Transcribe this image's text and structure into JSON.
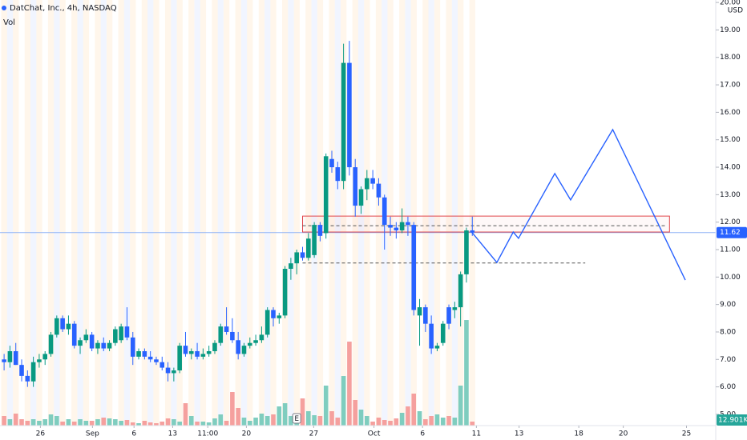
{
  "chart_data": {
    "type": "candlestick",
    "title": "DatChat, Inc., 4h, NASDAQ",
    "volume_title": "Vol",
    "currency": "USD",
    "earnings_marker": "E",
    "up_color": "#089981",
    "down_color": "#2962ff",
    "volume_up_color": "#7fcdbf",
    "volume_down_color": "#f5a09e",
    "drawing_color": "#2962ff",
    "rectangle_color": "#e0464b",
    "x": [
      0,
      1,
      2,
      3,
      4,
      5,
      6,
      7,
      8,
      9,
      10,
      11,
      12,
      13,
      14,
      15,
      16,
      17,
      18,
      19,
      20,
      21,
      22,
      23,
      24,
      25,
      26,
      27,
      28,
      29,
      30,
      31,
      32,
      33,
      34,
      35,
      36,
      37,
      38,
      39,
      40,
      41,
      42,
      43,
      44,
      45,
      46,
      47,
      48,
      49,
      50,
      51,
      52,
      53,
      54,
      55,
      56,
      57,
      58,
      59,
      60,
      61,
      62,
      63,
      64,
      65,
      66,
      67,
      68,
      69,
      70,
      71,
      72,
      73,
      74,
      75,
      76,
      77,
      78,
      79,
      80
    ],
    "open": [
      7.0,
      6.9,
      7.3,
      6.8,
      6.4,
      6.2,
      6.9,
      7.0,
      7.2,
      7.9,
      8.5,
      8.1,
      8.3,
      7.5,
      7.7,
      7.9,
      7.4,
      7.6,
      7.4,
      7.6,
      7.7,
      8.2,
      7.8,
      7.1,
      7.3,
      7.1,
      7.0,
      6.9,
      6.7,
      6.5,
      6.6,
      7.5,
      7.2,
      7.3,
      7.1,
      7.2,
      7.3,
      7.6,
      8.2,
      8.0,
      7.7,
      7.2,
      7.5,
      7.6,
      7.7,
      7.9,
      8.8,
      8.5,
      8.6,
      10.3,
      10.5,
      10.9,
      10.7,
      10.8,
      11.9,
      11.6,
      14.3,
      14.0,
      13.5,
      17.8,
      14.0,
      12.6,
      13.2,
      13.6,
      13.4,
      12.9,
      11.9,
      11.8,
      11.7,
      12.0,
      11.9,
      8.6,
      8.9,
      8.3,
      7.4,
      7.6,
      8.9,
      8.8,
      8.9,
      10.1,
      11.7
    ],
    "high": [
      7.2,
      7.5,
      7.6,
      7.0,
      6.6,
      7.1,
      7.2,
      7.3,
      8.0,
      8.6,
      8.6,
      8.6,
      8.4,
      7.8,
      8.1,
      8.0,
      7.7,
      7.8,
      7.7,
      8.2,
      8.3,
      8.9,
      8.0,
      7.4,
      7.4,
      7.3,
      7.1,
      7.1,
      6.9,
      6.7,
      7.6,
      8.0,
      7.4,
      7.6,
      7.4,
      7.5,
      7.7,
      8.3,
      8.9,
      8.5,
      8.0,
      7.6,
      7.8,
      7.9,
      8.2,
      8.9,
      8.9,
      8.7,
      10.4,
      10.7,
      11.0,
      11.1,
      11.6,
      12.0,
      12.0,
      14.5,
      14.6,
      14.2,
      18.5,
      18.6,
      14.3,
      13.3,
      13.9,
      13.9,
      13.6,
      13.0,
      12.2,
      12.0,
      12.5,
      12.2,
      12.0,
      9.2,
      9.0,
      8.6,
      7.6,
      8.4,
      9.0,
      9.1,
      10.2,
      11.8,
      12.2
    ],
    "low": [
      6.6,
      6.7,
      6.8,
      6.2,
      6.0,
      6.0,
      6.7,
      6.8,
      7.1,
      7.8,
      8.0,
      7.9,
      7.4,
      7.2,
      7.6,
      7.3,
      7.2,
      7.3,
      7.3,
      7.5,
      7.6,
      7.7,
      6.8,
      7.0,
      7.0,
      6.9,
      6.8,
      6.6,
      6.2,
      6.2,
      6.5,
      7.1,
      7.0,
      7.0,
      7.0,
      7.1,
      7.2,
      7.5,
      7.9,
      7.6,
      7.0,
      7.1,
      7.4,
      7.5,
      7.6,
      7.8,
      8.2,
      8.3,
      8.5,
      9.9,
      10.1,
      10.6,
      10.6,
      10.7,
      11.3,
      11.4,
      13.8,
      13.2,
      13.2,
      13.7,
      12.2,
      12.3,
      12.8,
      13.2,
      12.6,
      11.0,
      11.5,
      11.4,
      11.6,
      11.5,
      8.6,
      7.5,
      8.0,
      7.2,
      7.3,
      7.5,
      8.1,
      8.5,
      8.2,
      9.8,
      11.5
    ],
    "close": [
      6.9,
      7.3,
      6.8,
      6.4,
      6.2,
      6.9,
      7.0,
      7.2,
      7.9,
      8.5,
      8.1,
      8.3,
      7.5,
      7.7,
      7.9,
      7.4,
      7.6,
      7.4,
      7.6,
      8.1,
      8.2,
      7.8,
      7.1,
      7.3,
      7.1,
      7.0,
      6.9,
      6.7,
      6.5,
      6.6,
      7.5,
      7.2,
      7.3,
      7.1,
      7.2,
      7.3,
      7.6,
      8.2,
      8.0,
      7.7,
      7.2,
      7.5,
      7.6,
      7.7,
      7.9,
      8.8,
      8.5,
      8.6,
      10.3,
      10.5,
      10.9,
      10.7,
      11.4,
      11.9,
      11.5,
      14.4,
      14.0,
      13.5,
      17.8,
      14.0,
      12.6,
      13.2,
      13.6,
      13.4,
      12.9,
      11.9,
      11.8,
      11.7,
      12.0,
      11.9,
      8.8,
      8.9,
      8.3,
      7.4,
      7.5,
      8.3,
      8.3,
      8.9,
      10.1,
      11.7,
      11.62
    ],
    "volume": [
      30960,
      20640,
      38700,
      20640,
      15480,
      20640,
      15480,
      20640,
      36120,
      30960,
      12900,
      20640,
      12900,
      20640,
      15480,
      15480,
      20640,
      25800,
      23220,
      20640,
      15480,
      18060,
      10320,
      7740,
      15480,
      10320,
      7740,
      12900,
      23220,
      20640,
      12900,
      72240,
      30960,
      12900,
      12900,
      10320,
      23220,
      36120,
      15480,
      108360,
      56760,
      25800,
      15480,
      25800,
      38700,
      30960,
      36120,
      61920,
      72240,
      30960,
      25800,
      87720,
      46440,
      33540,
      30960,
      129000,
      46440,
      25800,
      159960,
      270900,
      82560,
      51600,
      30960,
      12900,
      25800,
      18060,
      15480,
      23220,
      41280,
      61920,
      103200,
      46440,
      20640,
      30960,
      36120,
      25800,
      30960,
      25800,
      129000,
      340560,
      12901
    ],
    "last_volume": {
      "value": 12901,
      "label": "12.901K"
    },
    "last_price": 11.62,
    "volume_ylim": [
      0,
      560000
    ],
    "xlim": [
      -0.7,
      121.6
    ],
    "ylim": [
      4.59,
      20.09
    ],
    "xticks": [
      {
        "value": 6.2,
        "label": "26"
      },
      {
        "value": 15.1,
        "label": "Sep"
      },
      {
        "value": 22.2,
        "label": "6"
      },
      {
        "value": 28.8,
        "label": "13"
      },
      {
        "value": 34.8,
        "label": "11:00"
      },
      {
        "value": 41.4,
        "label": "20"
      },
      {
        "value": 52.9,
        "label": "27"
      },
      {
        "value": 63.2,
        "label": "Oct"
      },
      {
        "value": 71.5,
        "label": "6"
      },
      {
        "value": 80.7,
        "label": "11"
      },
      {
        "value": 88.0,
        "label": "13"
      },
      {
        "value": 98.2,
        "label": "18"
      },
      {
        "value": 105.8,
        "label": "20"
      },
      {
        "value": 116.6,
        "label": "25"
      }
    ],
    "yticks": [
      {
        "value": 5,
        "label": "5.00"
      },
      {
        "value": 6,
        "label": "6.00"
      },
      {
        "value": 7,
        "label": "7.00"
      },
      {
        "value": 8,
        "label": "8.00"
      },
      {
        "value": 9,
        "label": "9.00"
      },
      {
        "value": 10,
        "label": "10.00"
      },
      {
        "value": 11,
        "label": "11.00"
      },
      {
        "value": 12,
        "label": "12.00"
      },
      {
        "value": 13,
        "label": "13.00"
      },
      {
        "value": 14,
        "label": "14.00"
      },
      {
        "value": 15,
        "label": "15.00"
      },
      {
        "value": 16,
        "label": "16.00"
      },
      {
        "value": 17,
        "label": "17.00"
      },
      {
        "value": 18,
        "label": "18.00"
      },
      {
        "value": 19,
        "label": "19.00"
      },
      {
        "value": 20,
        "label": "20.00"
      }
    ],
    "earnings_x": 50,
    "rectangle": {
      "x": [
        51,
        113.7
      ],
      "y": [
        11.64,
        12.22
      ]
    },
    "levels": [
      {
        "x": [
          51,
          113.3
        ],
        "y": 11.87
      },
      {
        "x": [
          51,
          99.3
        ],
        "y": 10.51
      }
    ],
    "projection": {
      "x": [
        79.9,
        84.2,
        87.0,
        87.9,
        94.1,
        96.8,
        104.0,
        116.4
      ],
      "y": [
        11.64,
        10.53,
        11.64,
        11.41,
        13.77,
        12.81,
        15.37,
        9.89
      ]
    }
  }
}
